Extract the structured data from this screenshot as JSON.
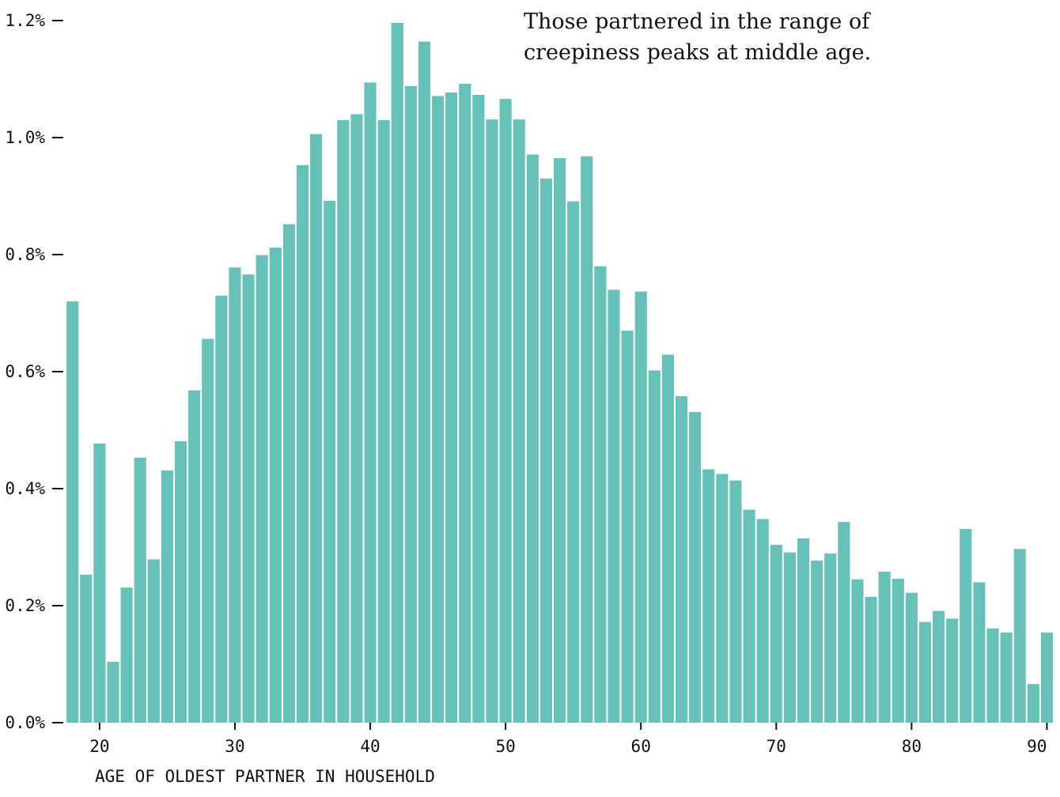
{
  "colors": {
    "bar": "#66c1b8",
    "text": "#111111",
    "background": "#ffffff"
  },
  "chart_data": {
    "type": "bar",
    "xlabel": "AGE OF OLDEST PARTNER IN HOUSEHOLD",
    "ylabel": "",
    "annotation": "Those partnered in the range of creepiness peaks at middle age.",
    "x_ticks": [
      20,
      30,
      40,
      50,
      60,
      70,
      80,
      90
    ],
    "x_tick_labels": [
      "20",
      "30",
      "40",
      "50",
      "60",
      "70",
      "80",
      "90"
    ],
    "y_ticks": [
      0.0,
      0.2,
      0.4,
      0.6,
      0.8,
      1.0,
      1.2
    ],
    "y_tick_labels": [
      "0.0%",
      "0.2%",
      "0.4%",
      "0.6%",
      "0.8%",
      "1.0%",
      "1.2%"
    ],
    "xlim": [
      16.5,
      90.5
    ],
    "ylim": [
      0,
      1.2
    ],
    "grid": false,
    "x": [
      18,
      19,
      20,
      21,
      22,
      23,
      24,
      25,
      26,
      27,
      28,
      29,
      30,
      31,
      32,
      33,
      34,
      35,
      36,
      37,
      38,
      39,
      40,
      41,
      42,
      43,
      44,
      45,
      46,
      47,
      48,
      49,
      50,
      51,
      52,
      53,
      54,
      55,
      56,
      57,
      58,
      59,
      60,
      61,
      62,
      63,
      64,
      65,
      66,
      67,
      68,
      69,
      70,
      71,
      72,
      73,
      74,
      75,
      76,
      77,
      78,
      79,
      80,
      81,
      82,
      83,
      84,
      85,
      86,
      87,
      88,
      89,
      90
    ],
    "values": [
      0.72,
      0.253,
      0.477,
      0.104,
      0.231,
      0.453,
      0.279,
      0.431,
      0.481,
      0.568,
      0.656,
      0.73,
      0.778,
      0.766,
      0.799,
      0.812,
      0.852,
      0.953,
      1.006,
      0.892,
      1.03,
      1.04,
      1.094,
      1.03,
      1.196,
      1.088,
      1.164,
      1.071,
      1.077,
      1.092,
      1.073,
      1.031,
      1.066,
      1.031,
      0.971,
      0.93,
      0.965,
      0.891,
      0.968,
      0.78,
      0.74,
      0.67,
      0.737,
      0.602,
      0.629,
      0.558,
      0.531,
      0.433,
      0.425,
      0.414,
      0.364,
      0.348,
      0.304,
      0.291,
      0.315,
      0.277,
      0.289,
      0.343,
      0.245,
      0.215,
      0.258,
      0.246,
      0.222,
      0.172,
      0.191,
      0.178,
      0.331,
      0.24,
      0.161,
      0.154,
      0.297,
      0.066,
      0.154
    ]
  }
}
